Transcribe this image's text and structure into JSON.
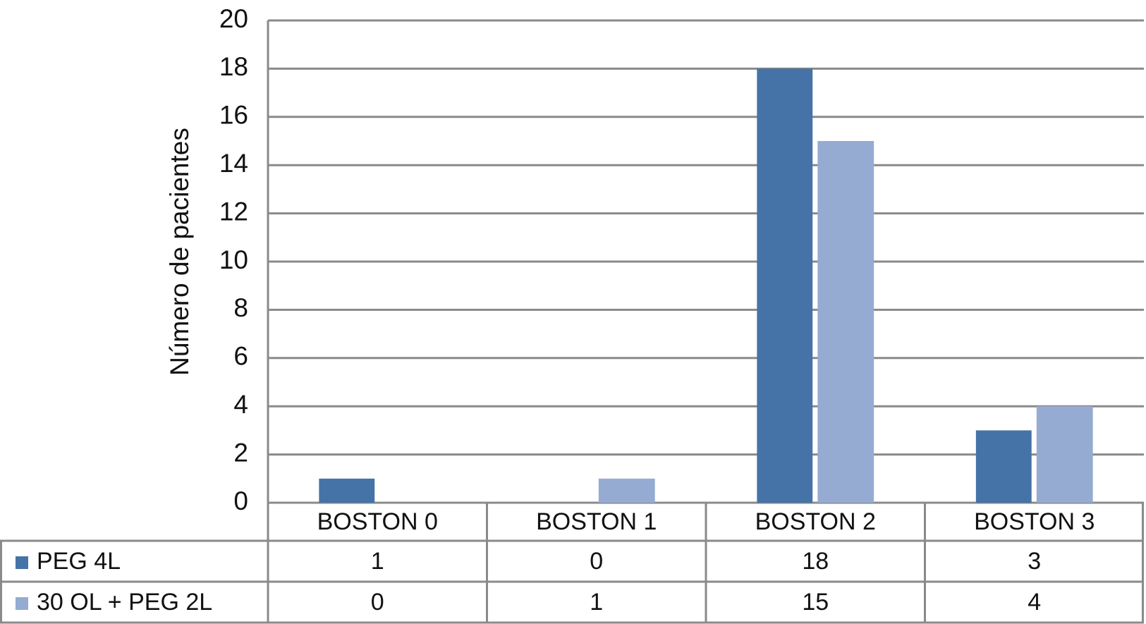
{
  "chart_data": {
    "type": "bar",
    "y_label": "Número de pacientes",
    "categories": [
      "BOSTON 0",
      "BOSTON 1",
      "BOSTON 2",
      "BOSTON 3"
    ],
    "series": [
      {
        "name": "PEG 4L",
        "color": "#4573a7",
        "values": [
          1,
          0,
          18,
          3
        ]
      },
      {
        "name": "30 OL + PEG 2L",
        "color": "#95abd2",
        "values": [
          0,
          1,
          15,
          4
        ]
      }
    ],
    "ylim": [
      0,
      20
    ],
    "yticks": [
      0,
      2,
      4,
      6,
      8,
      10,
      12,
      14,
      16,
      18,
      20
    ],
    "grid": true
  }
}
